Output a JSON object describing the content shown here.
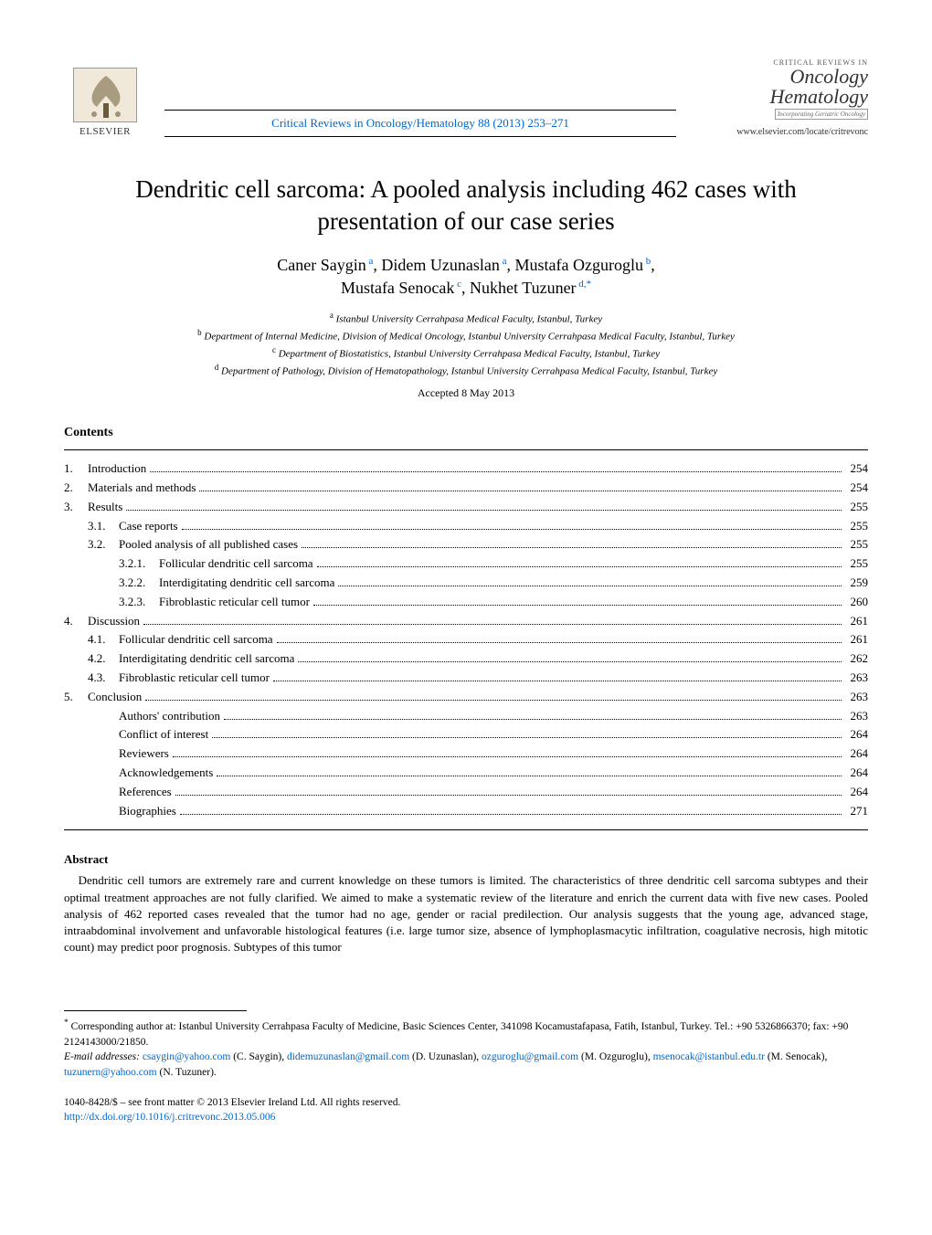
{
  "header": {
    "publisher": "ELSEVIER",
    "citation": "Critical Reviews in Oncology/Hematology 88 (2013) 253–271",
    "journal_critrev": "CRITICAL REVIEWS IN",
    "journal_onco": "Oncology",
    "journal_hema": "Hematology",
    "journal_incorp": "Incorporating Geriatric Oncology",
    "journal_url": "www.elsevier.com/locate/critrevonc"
  },
  "title": "Dendritic cell sarcoma: A pooled analysis including 462 cases with presentation of our case series",
  "authors": [
    {
      "name": "Caner Saygin",
      "sup": "a"
    },
    {
      "name": "Didem Uzunaslan",
      "sup": "a"
    },
    {
      "name": "Mustafa Ozguroglu",
      "sup": "b"
    },
    {
      "name": "Mustafa Senocak",
      "sup": "c"
    },
    {
      "name": "Nukhet Tuzuner",
      "sup": "d,*"
    }
  ],
  "affiliations": [
    {
      "sup": "a",
      "text": "Istanbul University Cerrahpasa Medical Faculty, Istanbul, Turkey"
    },
    {
      "sup": "b",
      "text": "Department of Internal Medicine, Division of Medical Oncology, Istanbul University Cerrahpasa Medical Faculty, Istanbul, Turkey"
    },
    {
      "sup": "c",
      "text": "Department of Biostatistics, Istanbul University Cerrahpasa Medical Faculty, Istanbul, Turkey"
    },
    {
      "sup": "d",
      "text": "Department of Pathology, Division of Hematopathology, Istanbul University Cerrahpasa Medical Faculty, Istanbul, Turkey"
    }
  ],
  "accepted": "Accepted 8 May 2013",
  "contents_heading": "Contents",
  "toc": [
    {
      "num": "1.",
      "label": "Introduction",
      "page": "254",
      "indent": 0
    },
    {
      "num": "2.",
      "label": "Materials and methods",
      "page": "254",
      "indent": 0
    },
    {
      "num": "3.",
      "label": "Results",
      "page": "255",
      "indent": 0
    },
    {
      "num": "3.1.",
      "label": "Case reports",
      "page": "255",
      "indent": 1
    },
    {
      "num": "3.2.",
      "label": "Pooled analysis of all published cases",
      "page": "255",
      "indent": 1
    },
    {
      "num": "3.2.1.",
      "label": "Follicular dendritic cell sarcoma",
      "page": "255",
      "indent": 2
    },
    {
      "num": "3.2.2.",
      "label": "Interdigitating dendritic cell sarcoma",
      "page": "259",
      "indent": 2
    },
    {
      "num": "3.2.3.",
      "label": "Fibroblastic reticular cell tumor",
      "page": "260",
      "indent": 2
    },
    {
      "num": "4.",
      "label": "Discussion",
      "page": "261",
      "indent": 0
    },
    {
      "num": "4.1.",
      "label": "Follicular dendritic cell sarcoma",
      "page": "261",
      "indent": 1
    },
    {
      "num": "4.2.",
      "label": "Interdigitating dendritic cell sarcoma",
      "page": "262",
      "indent": 1
    },
    {
      "num": "4.3.",
      "label": "Fibroblastic reticular cell tumor",
      "page": "263",
      "indent": 1
    },
    {
      "num": "5.",
      "label": "Conclusion",
      "page": "263",
      "indent": 0
    },
    {
      "num": "",
      "label": "Authors' contribution",
      "page": "263",
      "indent": 1
    },
    {
      "num": "",
      "label": "Conflict of interest",
      "page": "264",
      "indent": 1
    },
    {
      "num": "",
      "label": "Reviewers",
      "page": "264",
      "indent": 1
    },
    {
      "num": "",
      "label": "Acknowledgements",
      "page": "264",
      "indent": 1
    },
    {
      "num": "",
      "label": "References",
      "page": "264",
      "indent": 1
    },
    {
      "num": "",
      "label": "Biographies",
      "page": "271",
      "indent": 1
    }
  ],
  "abstract_heading": "Abstract",
  "abstract_body": "Dendritic cell tumors are extremely rare and current knowledge on these tumors is limited. The characteristics of three dendritic cell sarcoma subtypes and their optimal treatment approaches are not fully clarified. We aimed to make a systematic review of the literature and enrich the current data with five new cases. Pooled analysis of 462 reported cases revealed that the tumor had no age, gender or racial predilection. Our analysis suggests that the young age, advanced stage, intraabdominal involvement and unfavorable histological features (i.e. large tumor size, absence of lymphoplasmacytic infiltration, coagulative necrosis, high mitotic count) may predict poor prognosis. Subtypes of this tumor",
  "footnotes": {
    "corresponding": "Corresponding author at: Istanbul University Cerrahpasa Faculty of Medicine, Basic Sciences Center, 341098 Kocamustafapasa, Fatih, Istanbul, Turkey. Tel.: +90 5326866370; fax: +90 2124143000/21850.",
    "email_label": "E-mail addresses:",
    "emails": [
      {
        "email": "csaygin@yahoo.com",
        "who": "(C. Saygin)"
      },
      {
        "email": "didemuzunaslan@gmail.com",
        "who": "(D. Uzunaslan)"
      },
      {
        "email": "ozguroglu@gmail.com",
        "who": "(M. Ozguroglu)"
      },
      {
        "email": "msenocak@istanbul.edu.tr",
        "who": "(M. Senocak)"
      },
      {
        "email": "tuzunern@yahoo.com",
        "who": "(N. Tuzuner)"
      }
    ]
  },
  "copyright_line": "1040-8428/$ – see front matter © 2013 Elsevier Ireland Ltd. All rights reserved.",
  "doi": "http://dx.doi.org/10.1016/j.critrevonc.2013.05.006",
  "colors": {
    "link": "#0066cc",
    "text": "#000000",
    "bg": "#ffffff"
  },
  "fonts": {
    "family": "Times New Roman",
    "title_size_pt": 20,
    "body_size_pt": 10,
    "toc_size_pt": 10
  }
}
